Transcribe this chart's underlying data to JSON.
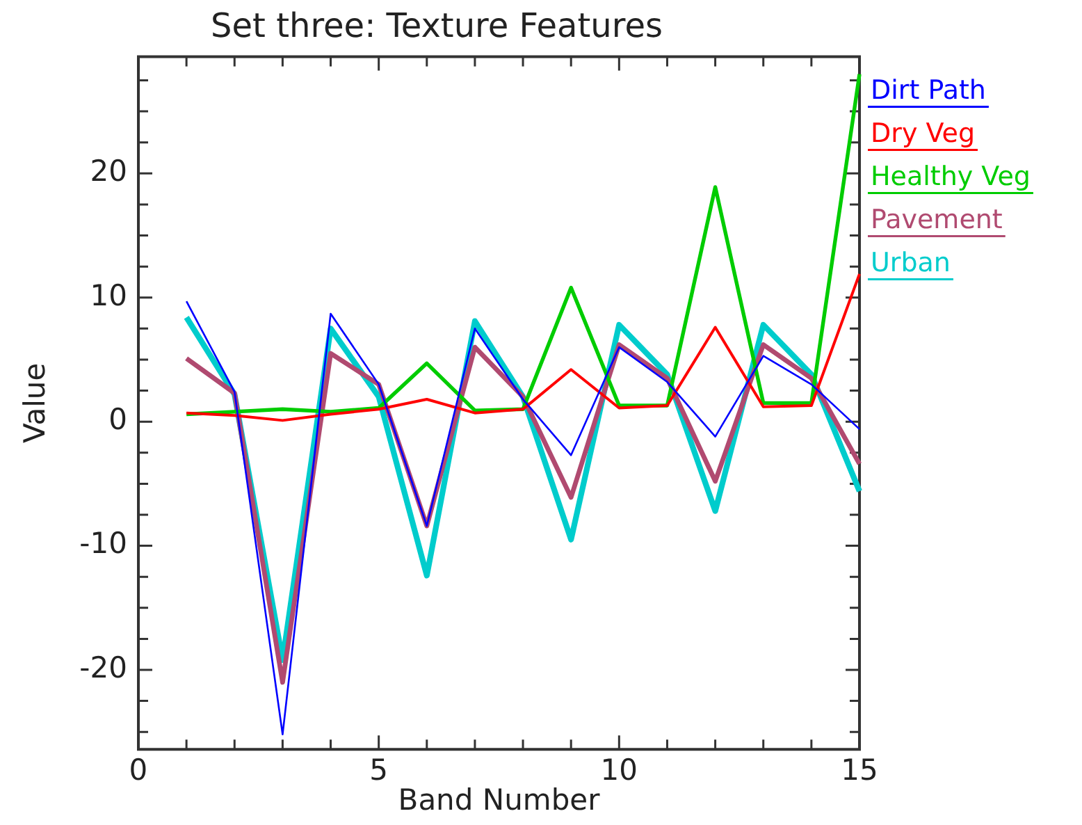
{
  "chart_data": {
    "type": "line",
    "title": "Set three: Texture Features",
    "xlabel": "Band Number",
    "ylabel": "Value",
    "x": [
      1,
      2,
      3,
      4,
      5,
      6,
      7,
      8,
      9,
      10,
      11,
      12,
      13,
      14,
      15
    ],
    "xlim": [
      0,
      15
    ],
    "ylim": [
      -26.4,
      29.4
    ],
    "xticks": [
      0,
      {
        "value": 1,
        "label": null
      },
      {
        "value": 2,
        "label": null
      },
      {
        "value": 3,
        "label": null
      },
      {
        "value": 4,
        "label": null
      },
      5,
      {
        "value": 6,
        "label": null
      },
      {
        "value": 7,
        "label": null
      },
      {
        "value": 8,
        "label": null
      },
      {
        "value": 9,
        "label": null
      },
      10,
      {
        "value": 11,
        "label": null
      },
      {
        "value": 12,
        "label": null
      },
      {
        "value": 13,
        "label": null
      },
      {
        "value": 14,
        "label": null
      },
      15
    ],
    "yticks": [
      {
        "value": -25,
        "label": null
      },
      {
        "value": -22.5,
        "label": null
      },
      "-20",
      {
        "value": -17.5,
        "label": null
      },
      {
        "value": -15,
        "label": null
      },
      {
        "value": -12.5,
        "label": null
      },
      -10,
      {
        "value": -7.5,
        "label": null
      },
      {
        "value": -5,
        "label": null
      },
      {
        "value": -2.5,
        "label": null
      },
      0,
      {
        "value": 2.5,
        "label": null
      },
      {
        "value": 5,
        "label": null
      },
      {
        "value": 7.5,
        "label": null
      },
      10,
      {
        "value": 12.5,
        "label": null
      },
      {
        "value": 15,
        "label": null
      },
      {
        "value": 17.5,
        "label": null
      },
      20,
      {
        "value": 22.5,
        "label": null
      },
      {
        "value": 25,
        "label": null
      },
      {
        "value": 27.5,
        "label": null
      }
    ],
    "legend": "right",
    "marker": "none",
    "line_style": "solid",
    "series": [
      {
        "name": "Dirt Path",
        "color": "#0000ff",
        "values": [
          9.7,
          2.4,
          -25.2,
          8.7,
          3.0,
          -8.4,
          7.5,
          1.8,
          -2.7,
          6.0,
          3.2,
          -1.2,
          5.3,
          3.0,
          -0.6
        ]
      },
      {
        "name": "Dry Veg",
        "color": "#ff0000",
        "values": [
          0.7,
          0.5,
          0.1,
          0.6,
          1.0,
          1.8,
          0.7,
          1.0,
          4.2,
          1.1,
          1.3,
          7.6,
          1.2,
          1.3,
          11.9
        ]
      },
      {
        "name": "Healthy Veg",
        "color": "#00cc00",
        "values": [
          0.6,
          0.8,
          1.0,
          0.8,
          1.1,
          4.7,
          0.9,
          1.0,
          10.8,
          1.3,
          1.3,
          18.9,
          1.5,
          1.5,
          28.0
        ]
      },
      {
        "name": "Pavement",
        "color": "#b04a70",
        "values": [
          5.1,
          2.3,
          -21.0,
          5.5,
          3.0,
          -8.4,
          6.0,
          2.0,
          -6.1,
          6.2,
          3.5,
          -4.8,
          6.2,
          3.5,
          -3.4
        ]
      },
      {
        "name": "Urban",
        "color": "#00cccc",
        "values": [
          8.4,
          2.2,
          -19.2,
          7.5,
          2.0,
          -12.4,
          8.1,
          2.0,
          -9.5,
          7.8,
          3.8,
          -7.2,
          7.8,
          3.8,
          -5.6
        ]
      }
    ]
  }
}
